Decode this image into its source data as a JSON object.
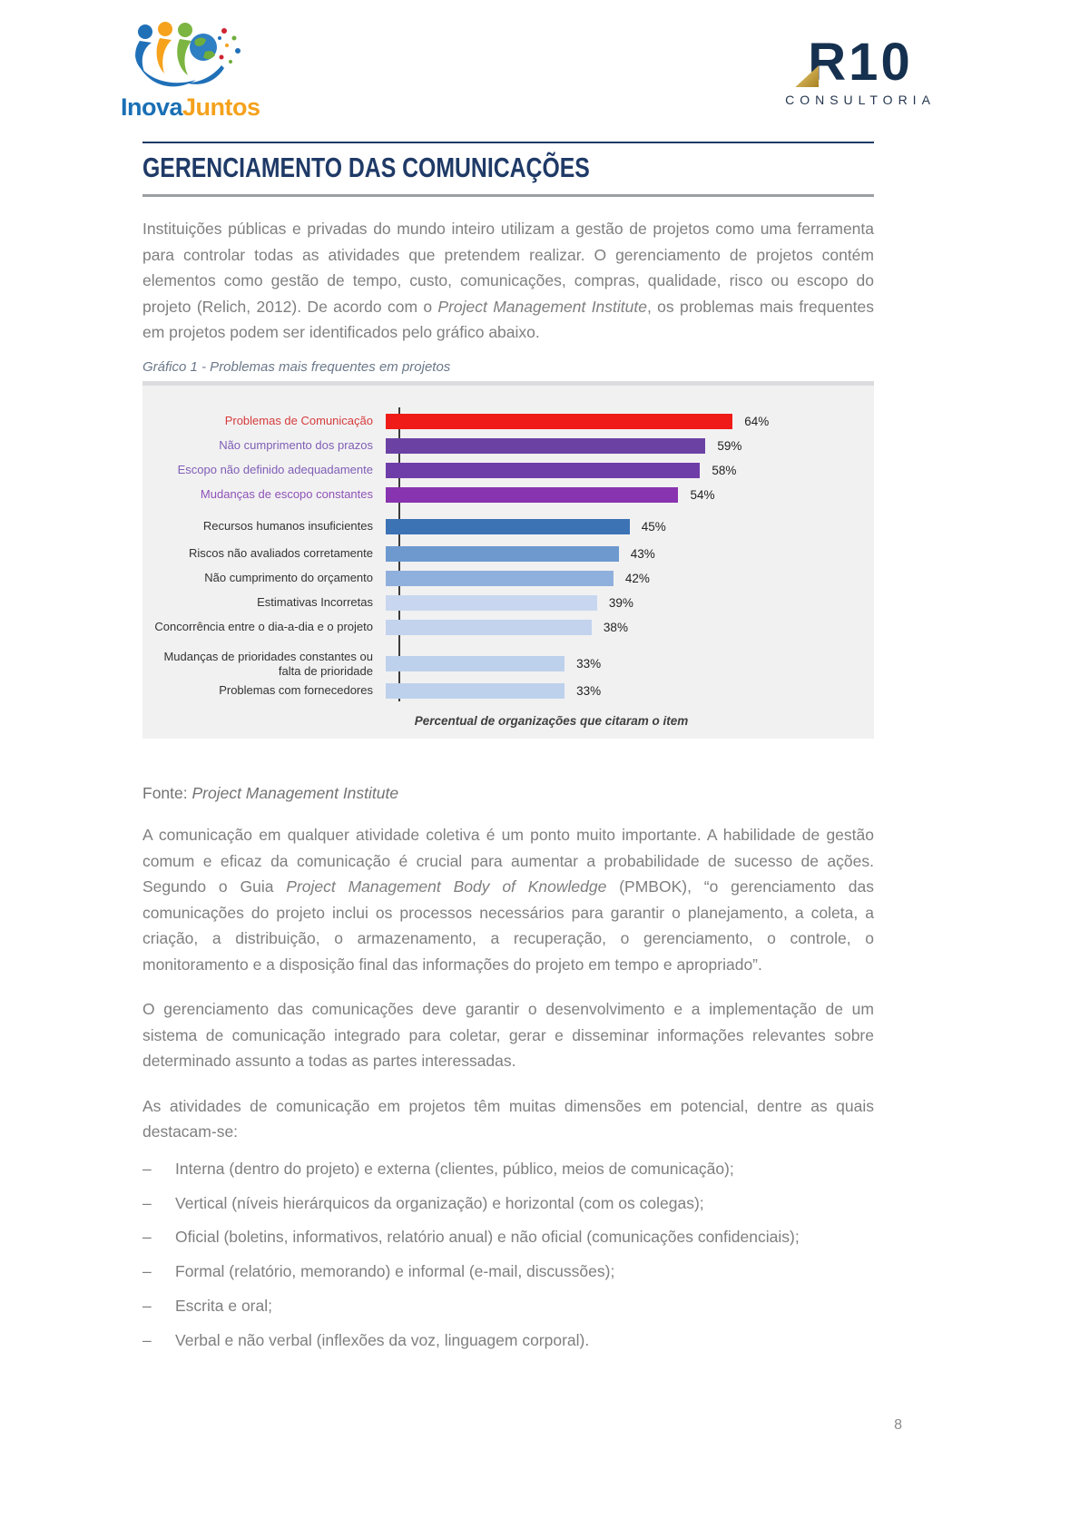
{
  "header": {
    "logo_left": {
      "text_blue": "Inova",
      "text_orange": "Juntos"
    },
    "logo_right": {
      "brand": "R10",
      "subtitle": "CONSULTORIA"
    }
  },
  "heading": "GERENCIAMENTO DAS COMUNICAÇÕES",
  "paragraph1": {
    "a": "Instituições públicas e privadas do mundo inteiro utilizam a gestão de projetos como uma ferramenta para controlar todas as atividades que pretendem realizar. O gerenciamento de projetos contém elementos como gestão de tempo, custo, comunicações, compras, qualidade, risco ou escopo do projeto (Relich, 2012). De acordo com o ",
    "italic": "Project Management Institute",
    "b": ", os problemas mais frequentes em projetos podem ser identificados pelo gráfico abaixo."
  },
  "chart_caption": "Gráfico 1 - Problemas mais frequentes em projetos",
  "chart_data": {
    "type": "bar",
    "orientation": "horizontal",
    "xlabel": "Percentual de organizações que citaram o item",
    "unit": "%",
    "xlim": [
      0,
      70
    ],
    "grid": false,
    "legend": false,
    "categories": [
      "Problemas de Comunicação",
      "Não cumprimento dos prazos",
      "Escopo não definido adequadamente",
      "Mudanças de escopo constantes",
      "Recursos humanos insuficientes",
      "Riscos não avaliados corretamente",
      "Não cumprimento do orçamento",
      "Estimativas Incorretas",
      "Concorrência entre o dia-a-dia e o projeto",
      "Mudanças de prioridades constantes ou falta de prioridade",
      "Problemas com fornecedores"
    ],
    "values": [
      64,
      59,
      58,
      54,
      45,
      43,
      42,
      39,
      38,
      33,
      33
    ],
    "value_labels": [
      "64%",
      "59%",
      "58%",
      "54%",
      "45%",
      "43%",
      "42%",
      "39%",
      "38%",
      "33%",
      "33%"
    ],
    "bar_colors": [
      "#ee1b18",
      "#6b42a4",
      "#6f3da8",
      "#8833b0",
      "#3c73b5",
      "#6d99cf",
      "#8fb0dc",
      "#c8d7ef",
      "#c3d3ee",
      "#bdd1ec",
      "#bdd1ec"
    ],
    "label_colors": [
      "#d53c3c",
      "#7e5eb5",
      "#7e5eb5",
      "#8e52b8",
      "#333333",
      "#333333",
      "#333333",
      "#333333",
      "#333333",
      "#333333",
      "#333333"
    ]
  },
  "fonte": {
    "label": "Fonte: ",
    "italic": "Project Management Institute"
  },
  "paragraph2": {
    "a": "A comunicação em qualquer atividade coletiva é um ponto muito importante. A habilidade de gestão comum e eficaz da comunicação é crucial para aumentar a probabilidade de sucesso de ações. Segundo o Guia ",
    "italic": "Project Management Body of Knowledge",
    "b": " (PMBOK), “o gerenciamento das comunicações do projeto inclui os processos necessários para garantir o planejamento, a coleta, a criação, a distribuição, o armazenamento, a recuperação, o gerenciamento, o controle, o monitoramento e a disposição final das informações do projeto em tempo e apropriado”."
  },
  "paragraph3": "O gerenciamento das comunicações deve garantir o desenvolvimento e a implementação de um sistema de comunicação integrado para coletar, gerar e disseminar informações relevantes sobre determinado assunto a todas as partes interessadas.",
  "paragraph4": "As atividades de comunicação em projetos têm muitas dimensões em potencial, dentre as quais destacam-se:",
  "list": {
    "marker": "–",
    "items": [
      "Interna (dentro do projeto) e externa (clientes, público, meios de comunicação);",
      "Vertical (níveis hierárquicos da organização) e horizontal (com os colegas);",
      "Oficial (boletins, informativos, relatório anual) e não oficial (comunicações confidenciais);",
      "Formal (relatório, memorando) e informal (e-mail, discussões);",
      "Escrita e oral;",
      "Verbal e não verbal (inflexões da voz, linguagem corporal)."
    ]
  },
  "page_number": "8"
}
